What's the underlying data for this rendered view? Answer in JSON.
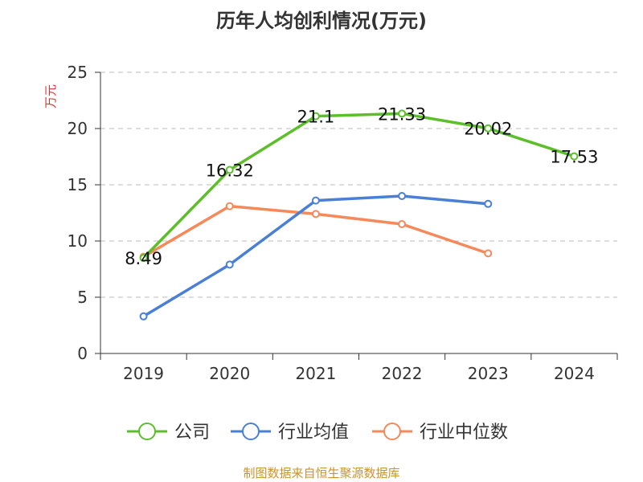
{
  "chart_data": {
    "type": "line",
    "title": "历年人均创利情况(万元)",
    "ylabel": "万元",
    "xlabel": "",
    "categories": [
      "2019",
      "2020",
      "2021",
      "2022",
      "2023",
      "2024"
    ],
    "ylim": [
      0,
      25
    ],
    "yticks": [
      0,
      5,
      10,
      15,
      20,
      25
    ],
    "grid": true,
    "legend_position": "bottom",
    "series": [
      {
        "name": "公司",
        "color": "#5cbf2a",
        "values": [
          8.49,
          16.32,
          21.1,
          21.33,
          20.02,
          17.53
        ],
        "show_labels": true
      },
      {
        "name": "行业均值",
        "color": "#4a7fd6",
        "values": [
          3.3,
          7.9,
          13.6,
          14.0,
          13.3,
          null
        ],
        "show_labels": false
      },
      {
        "name": "行业中位数",
        "color": "#f5895a",
        "values": [
          8.6,
          13.1,
          12.4,
          11.5,
          8.9,
          null
        ],
        "show_labels": false
      }
    ],
    "value_labels": [
      "8.49",
      "16.32",
      "21.1",
      "21.33",
      "20.02",
      "17.53"
    ]
  },
  "source_text": "制图数据来自恒生聚源数据库"
}
